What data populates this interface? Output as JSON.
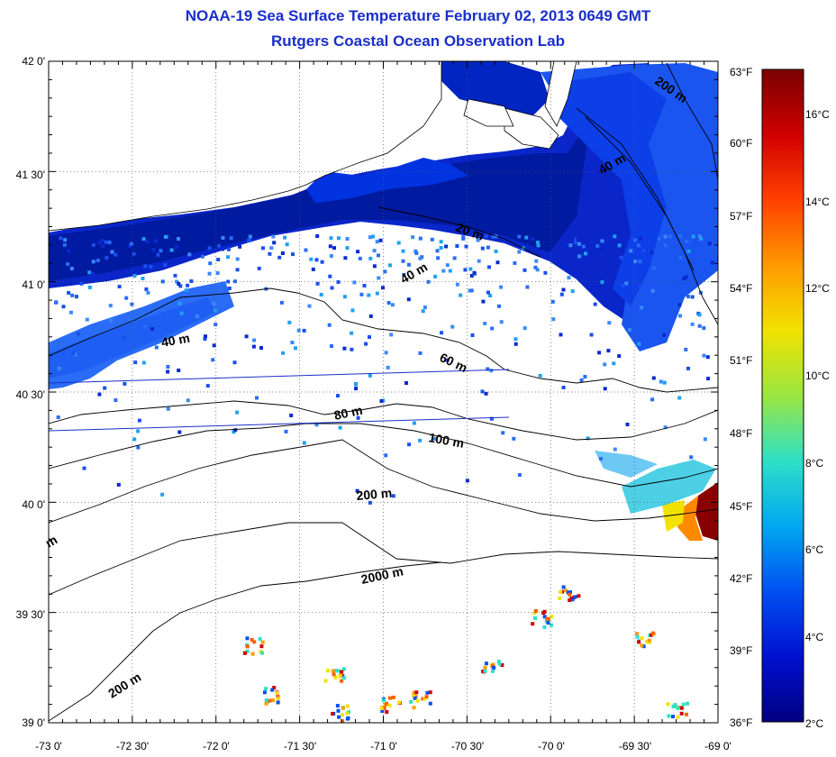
{
  "header": {
    "title": "NOAA-19 Sea Surface Temperature February 02, 2013 0649 GMT",
    "subtitle": "Rutgers Coastal Ocean Observation Lab"
  },
  "map": {
    "lat_labels": [
      "42 0'",
      "41 30'",
      "41 0'",
      "40 30'",
      "40 0'",
      "39 30'",
      "39 0'"
    ],
    "lon_labels": [
      "-73 0'",
      "-72 30'",
      "-72 0'",
      "-71 30'",
      "-71 0'",
      "-70 30'",
      "-70 0'",
      "-69 30'",
      "-69 0'"
    ],
    "fahrenheit_labels": [
      "63°F",
      "60°F",
      "57°F",
      "54°F",
      "51°F",
      "48°F",
      "45°F",
      "42°F",
      "39°F",
      "36°F"
    ],
    "isobath_labels": [
      "200 m",
      "40 m",
      "20 m",
      "40 m",
      "40 m",
      "60 m",
      "80 m",
      "100 m",
      "200 m",
      "2000 m",
      "200 m",
      "m"
    ]
  },
  "colorbar": {
    "celsius_labels": [
      "16°C",
      "14°C",
      "12°C",
      "10°C",
      "8°C",
      "6°C",
      "4°C",
      "2°C"
    ],
    "stops": [
      "#7a0000",
      "#d00000",
      "#ff4000",
      "#ff9a00",
      "#f2e200",
      "#9ae640",
      "#2ee0c8",
      "#00a8f0",
      "#0050f0",
      "#0010d0",
      "#000080"
    ]
  }
}
